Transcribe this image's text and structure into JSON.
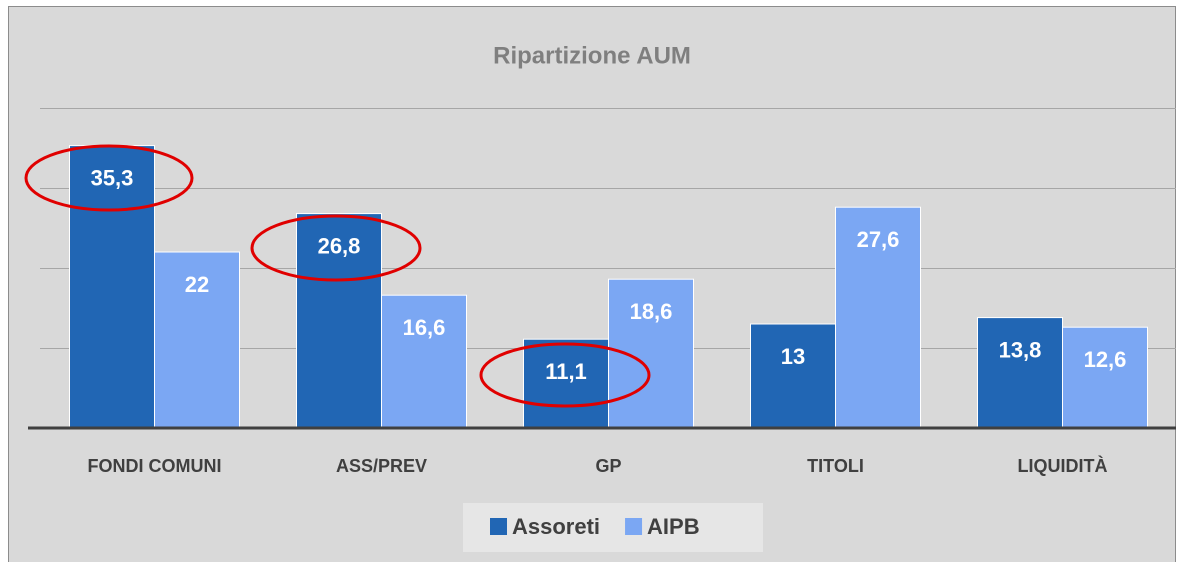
{
  "chart_data": {
    "type": "bar",
    "title": "Ripartizione AUM",
    "categories": [
      "FONDI COMUNI",
      "ASS/PREV",
      "GP",
      "TITOLI",
      "LIQUIDITÀ"
    ],
    "series": [
      {
        "name": "Assoreti",
        "color": "#2166b4",
        "values": [
          35.3,
          26.8,
          11.1,
          13,
          13.8
        ],
        "value_labels": [
          "35,3",
          "26,8",
          "11,1",
          "13",
          "13,8"
        ]
      },
      {
        "name": "AIPB",
        "color": "#7ba7f3",
        "values": [
          22,
          16.6,
          18.6,
          27.6,
          12.6
        ],
        "value_labels": [
          "22",
          "16,6",
          "18,6",
          "27,6",
          "12,6"
        ]
      }
    ],
    "ylim": [
      0,
      40
    ],
    "yticks": [
      0,
      10,
      20,
      30,
      40
    ],
    "grid": true,
    "legend": "bottom"
  }
}
